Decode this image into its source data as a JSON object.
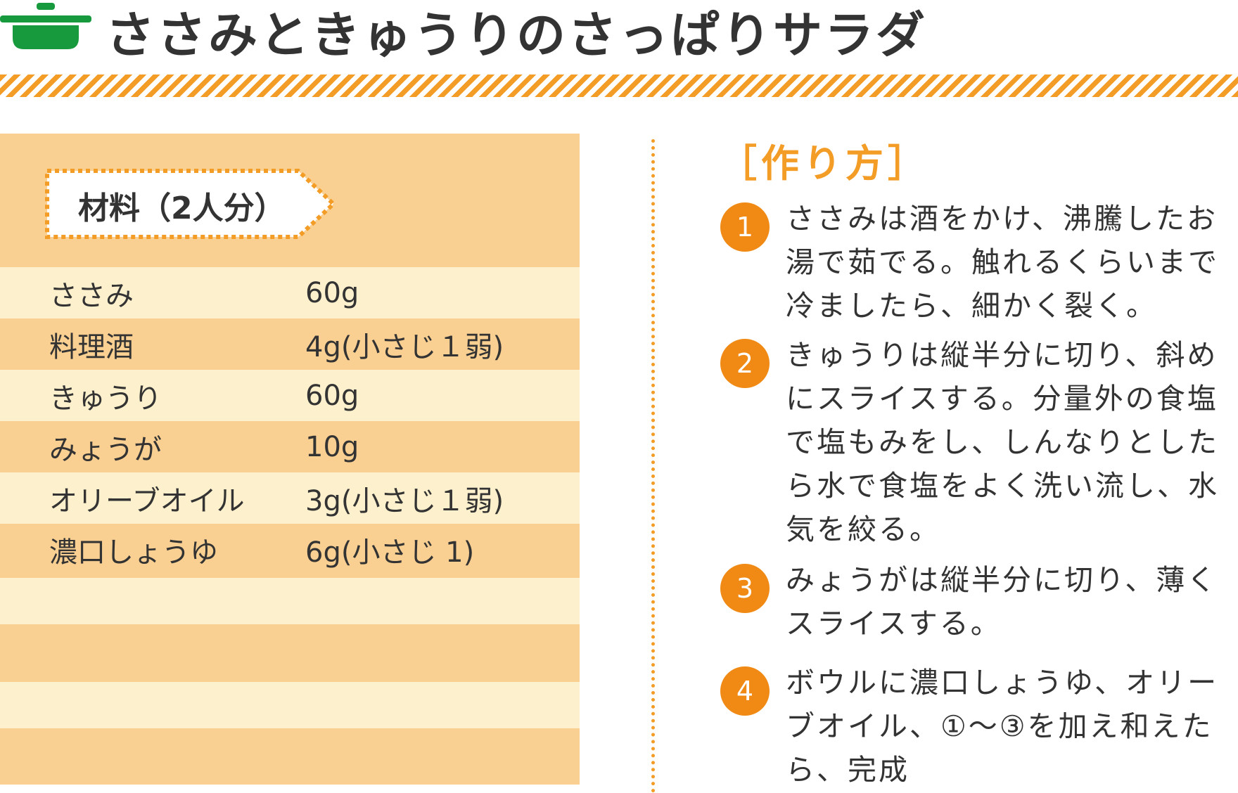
{
  "title": "ささみときゅうりのさっぱりサラダ",
  "colors": {
    "accent": "#f39c26",
    "icon": "#179a3e",
    "panel": "#f9d092",
    "panel_light": "#fdf0cc",
    "badge": "#f08a14"
  },
  "icon": "pot-icon",
  "ingredients": {
    "heading": "材料（2人分）",
    "items": [
      {
        "name": "ささみ",
        "amount": "60g"
      },
      {
        "name": "料理酒",
        "amount": "4g(小さじ１弱)"
      },
      {
        "name": "きゅうり",
        "amount": "60g"
      },
      {
        "name": "みょうが",
        "amount": "10g"
      },
      {
        "name": "オリーブオイル",
        "amount": "3g(小さじ１弱)"
      },
      {
        "name": "濃口しょうゆ",
        "amount": "6g(小さじ 1)"
      }
    ]
  },
  "method": {
    "heading": "［作り方］",
    "steps": [
      {
        "number": "1",
        "text": "ささみは酒をかけ、沸騰したお湯で茹でる。触れるくらいまで冷ましたら、細かく裂く。"
      },
      {
        "number": "2",
        "text": "きゅうりは縦半分に切り、斜めにスライスする。分量外の食塩で塩もみをし、しんなりとしたら水で食塩をよく洗い流し、水気を絞る。"
      },
      {
        "number": "3",
        "text": "みょうがは縦半分に切り、薄くスライスする。"
      },
      {
        "number": "4",
        "text": "ボウルに濃口しょうゆ、オリーブオイル、①〜③を加え和えたら、完成"
      }
    ]
  }
}
